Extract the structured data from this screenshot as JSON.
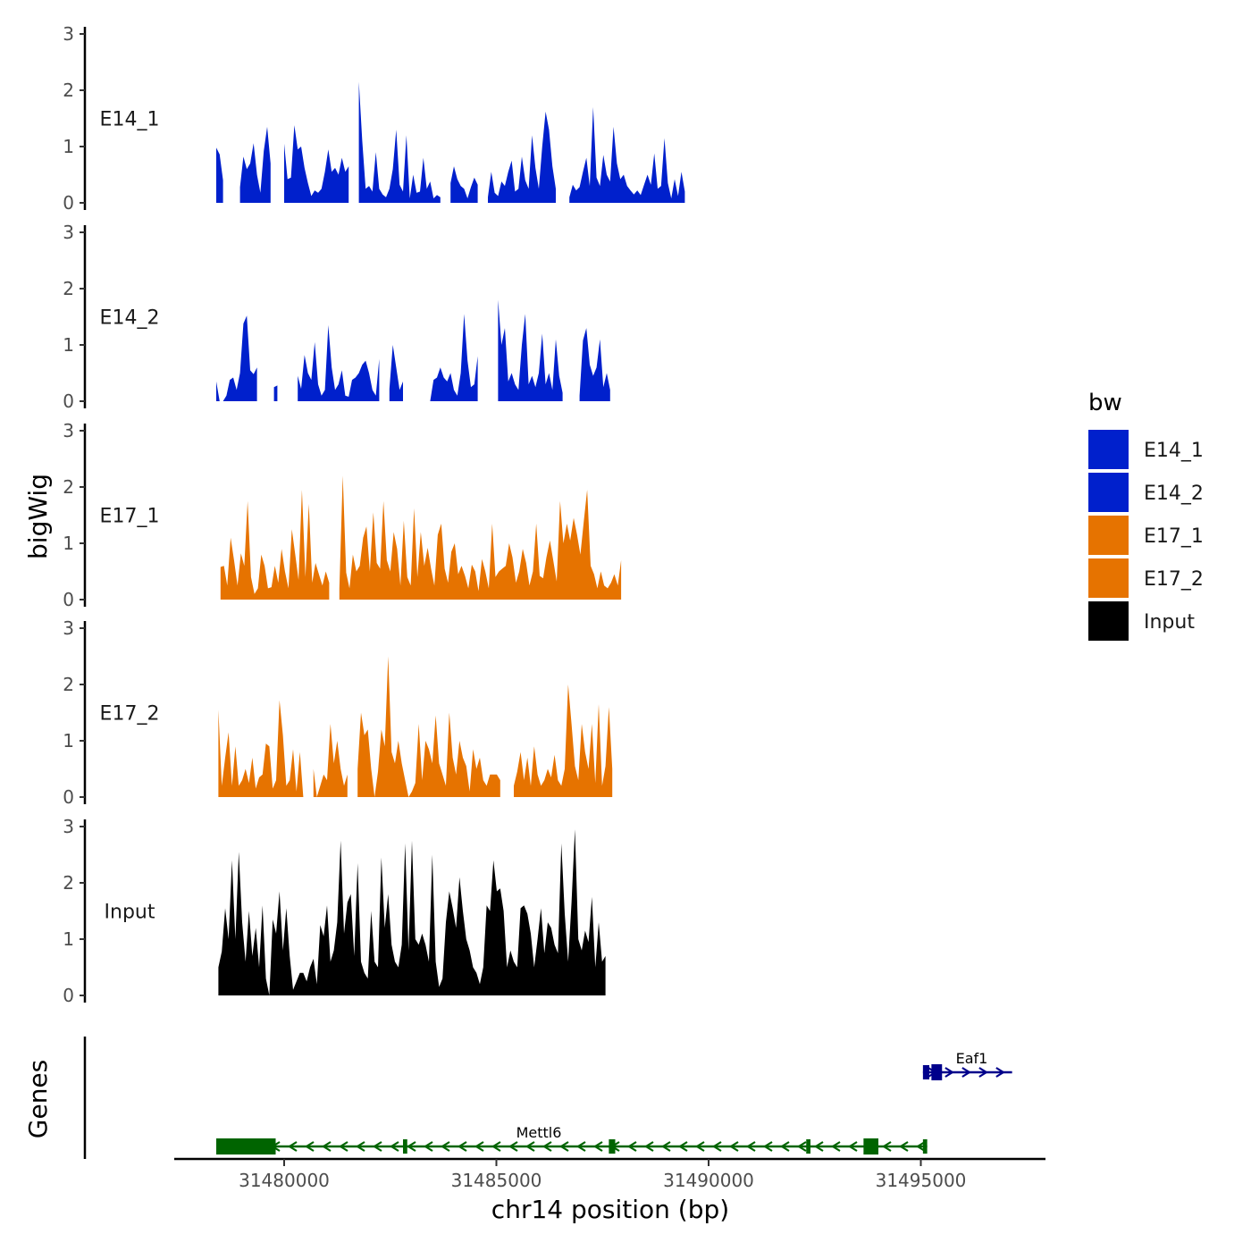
{
  "chart_data": {
    "type": "area",
    "ylabel": "bigWig",
    "xlabel": "chr14 position (bp)",
    "genes_label": "Genes",
    "y_ticks": [
      "0",
      "1",
      "2",
      "3"
    ],
    "ylim": [
      0,
      3
    ],
    "xlim": [
      31477000,
      31497500
    ],
    "x_ticks": [
      31480000,
      31485000,
      31490000,
      31495000
    ],
    "x_tick_labels": [
      "31480000",
      "31485000",
      "31490000",
      "31495000"
    ],
    "legend": {
      "title": "bw",
      "entries": [
        {
          "label": "E14_1",
          "color": "#0020CC"
        },
        {
          "label": "E14_2",
          "color": "#0020CC"
        },
        {
          "label": "E17_1",
          "color": "#E67300"
        },
        {
          "label": "E17_2",
          "color": "#E67300"
        },
        {
          "label": "Input",
          "color": "#000000"
        }
      ]
    },
    "series": [
      {
        "name": "E14_1",
        "color": "#0020CC",
        "x_start": 31478400,
        "step": 80,
        "values": [
          0.98,
          0.86,
          0.4,
          0,
          0,
          0,
          0,
          0.28,
          0.82,
          0.6,
          0.7,
          1.06,
          0.5,
          0.18,
          0.92,
          1.35,
          0.7,
          0,
          0,
          0.1,
          1.05,
          0.42,
          0.45,
          1.38,
          0.95,
          1.0,
          0.62,
          0.35,
          0.12,
          0.22,
          0.18,
          0.25,
          0.55,
          0.95,
          0.55,
          0.62,
          0.5,
          0.8,
          0.55,
          0.65,
          0,
          0.12,
          2.15,
          1.1,
          0.25,
          0.3,
          0.2,
          0.9,
          0.25,
          0.15,
          0.1,
          0.25,
          0.6,
          1.3,
          0.32,
          0.2,
          1.2,
          0.08,
          0.5,
          0.18,
          0.2,
          0.8,
          0.25,
          0.38,
          0.08,
          0.14,
          0.1,
          0.05,
          0.18,
          0.35,
          0.65,
          0.42,
          0.3,
          0.25,
          0.08,
          0.28,
          0.45,
          0.32,
          0.1,
          0.05,
          0.1,
          0.55,
          0.18,
          0.12,
          0.38,
          0.3,
          0.55,
          0.75,
          0.2,
          0.25,
          0.82,
          0.4,
          0.25,
          1.2,
          0.62,
          0.25,
          1.0,
          1.62,
          1.3,
          0.65,
          0.25,
          0.5,
          0.2,
          0,
          0.1,
          0.32,
          0.22,
          0.28,
          0.55,
          0.8,
          0.3,
          1.7,
          0.45,
          0.3,
          0.85,
          0.5,
          0.38,
          1.35,
          0.7,
          0.42,
          0.5,
          0.3,
          0.22,
          0.15,
          0.22,
          0.14,
          0.32,
          0.5,
          0.32,
          0.88,
          0.25,
          0.3,
          1.15,
          0.35,
          0.08,
          0.42,
          0.12,
          0.55,
          0.2
        ],
        "gaps": [
          [
            3,
            6
          ],
          [
            17,
            19
          ],
          [
            40,
            41
          ],
          [
            67,
            68
          ],
          [
            78,
            79
          ],
          [
            101,
            103
          ]
        ]
      },
      {
        "name": "E14_2",
        "color": "#0020CC",
        "x_start": 31478400,
        "step": 80,
        "values": [
          0.35,
          0,
          0,
          0.1,
          0.38,
          0.42,
          0.2,
          0.5,
          1.38,
          1.52,
          0.55,
          0.48,
          0.6,
          0.7,
          0,
          0,
          0,
          0.25,
          0.28,
          0,
          0,
          0,
          0,
          1.0,
          0.45,
          0.22,
          0.82,
          0.5,
          0.38,
          1.05,
          0.3,
          0.1,
          0.2,
          1.35,
          0.6,
          0.2,
          0.3,
          0.55,
          0.1,
          0.08,
          0.38,
          0.42,
          0.5,
          0.65,
          0.72,
          0.5,
          0.2,
          0.1,
          0.75,
          0.2,
          0,
          0.22,
          1.0,
          0.6,
          0.2,
          0.35,
          0.3,
          0,
          0.1,
          0.15,
          0.35,
          0,
          0,
          0,
          0.38,
          0.42,
          0.6,
          0.42,
          0.35,
          0.5,
          0.2,
          0.1,
          0.5,
          1.55,
          0.72,
          0.25,
          0.3,
          0.8,
          0.3,
          0.2,
          0,
          0,
          0,
          1.8,
          1.0,
          1.3,
          0.35,
          0.5,
          0.3,
          0.2,
          1.0,
          1.55,
          0.3,
          0.45,
          0.25,
          0.5,
          1.2,
          0.3,
          0.5,
          0.2,
          1.1,
          0.45,
          0.15,
          1.75,
          0.5,
          0.1,
          0,
          0.1,
          1.08,
          1.3,
          0.65,
          0.45,
          0.6,
          1.1,
          0.25,
          0.5,
          0.2
        ],
        "gaps": [
          [
            13,
            16
          ],
          [
            19,
            23
          ],
          [
            49,
            50
          ],
          [
            56,
            60
          ],
          [
            78,
            82
          ],
          [
            103,
            106
          ]
        ]
      },
      {
        "name": "E17_1",
        "color": "#E67300",
        "x_start": 31478500,
        "step": 80,
        "values": [
          0.58,
          0.6,
          0.25,
          1.1,
          0.7,
          0.25,
          0.82,
          0.6,
          1.75,
          0.4,
          0.1,
          0.2,
          0.8,
          0.6,
          0.2,
          0.22,
          0.6,
          0.3,
          0.9,
          0.5,
          0.2,
          1.25,
          0.8,
          0.35,
          1.95,
          0.4,
          1.7,
          0.3,
          0.65,
          0.45,
          0.25,
          0.5,
          0.3,
          0,
          0,
          0.2,
          2.2,
          0.48,
          0.2,
          0.8,
          0.5,
          0.6,
          1.1,
          1.3,
          0.5,
          1.55,
          0.65,
          0.55,
          1.75,
          0.7,
          0.5,
          1.2,
          0.9,
          0.25,
          1.4,
          0.4,
          0.25,
          1.62,
          0.4,
          1.2,
          0.6,
          0.92,
          0.55,
          0.25,
          1.15,
          1.35,
          0.55,
          0.3,
          0.85,
          1.0,
          0.45,
          0.6,
          0.42,
          0.2,
          0.62,
          0.5,
          0.15,
          0.72,
          0.5,
          0.2,
          1.35,
          0.4,
          0.5,
          0.55,
          0.6,
          1.0,
          0.75,
          0.3,
          0.5,
          0.9,
          0.65,
          0.25,
          0.5,
          1.35,
          0.42,
          0.38,
          0.75,
          1.05,
          0.7,
          0.32,
          1.75,
          1.0,
          1.35,
          1.05,
          1.45,
          1.15,
          0.8,
          1.4,
          1.95,
          0.6,
          0.45,
          0.2,
          0.5,
          0.25,
          0.2,
          0.3,
          0.45,
          0.25,
          0.7
        ],
        "gaps": [
          [
            33,
            34
          ]
        ]
      },
      {
        "name": "E17_2",
        "color": "#E67300",
        "x_start": 31478450,
        "step": 80,
        "values": [
          1.55,
          0.2,
          0.7,
          1.15,
          0.2,
          0.9,
          0.2,
          0.3,
          0.5,
          0.25,
          0.7,
          0.15,
          0.35,
          0.4,
          0.95,
          0.9,
          0.15,
          0.3,
          1.72,
          1.1,
          0.2,
          0.3,
          0.85,
          0.1,
          0.8,
          0,
          0.8,
          0.1,
          0.5,
          0,
          0.2,
          0.4,
          0.3,
          1.3,
          0.6,
          1.0,
          0.5,
          0.2,
          0.4,
          0,
          0,
          0.5,
          1.5,
          1.1,
          1.2,
          0.5,
          0,
          0.45,
          1.2,
          0.9,
          2.5,
          0.8,
          0.6,
          1.0,
          0.6,
          0.3,
          0,
          0.1,
          0.25,
          1.3,
          0.3,
          1.0,
          0.85,
          0.6,
          1.45,
          0.6,
          0.4,
          0.2,
          1.5,
          0.7,
          0.4,
          1.0,
          0.7,
          0.55,
          0.1,
          0.85,
          0.5,
          0.7,
          0.3,
          0.2,
          0.4,
          0.4,
          0.4,
          0.3,
          0,
          0,
          0,
          0.2,
          0.45,
          0.8,
          0.3,
          0.7,
          0.2,
          0.9,
          0.4,
          0.2,
          0.3,
          0.5,
          0.35,
          0.75,
          0.3,
          0.2,
          0.5,
          2.0,
          1.3,
          0.55,
          0.3,
          1.3,
          0.8,
          0.5,
          1.3,
          0.25,
          1.65,
          0.2,
          0.55,
          1.6,
          0.5
        ],
        "gaps": [
          [
            26,
            27
          ],
          [
            39,
            40
          ],
          [
            84,
            86
          ]
        ]
      },
      {
        "name": "Input",
        "color": "#000000",
        "x_start": 31478450,
        "step": 80,
        "values": [
          0.5,
          0.78,
          1.55,
          1.0,
          2.4,
          1.0,
          2.55,
          1.3,
          0.6,
          1.5,
          0.7,
          1.2,
          0.5,
          1.6,
          0.3,
          0,
          1.35,
          1.1,
          1.85,
          0.8,
          1.55,
          0.7,
          0.1,
          0.25,
          0.4,
          0.4,
          0.25,
          0.5,
          0.65,
          0.2,
          1.25,
          1.05,
          1.6,
          0.6,
          0.8,
          1.3,
          2.75,
          1.1,
          1.65,
          1.8,
          0.7,
          2.35,
          0.6,
          0.4,
          0.3,
          1.5,
          0.6,
          0.5,
          2.45,
          1.2,
          1.8,
          0.9,
          0.6,
          0.5,
          0.9,
          2.7,
          0.8,
          2.75,
          1.0,
          0.9,
          1.1,
          0.9,
          0.6,
          2.5,
          0.6,
          0.15,
          0.3,
          1.3,
          1.85,
          1.55,
          1.2,
          2.1,
          1.5,
          1.0,
          0.8,
          0.5,
          0.4,
          0.2,
          0.5,
          1.6,
          1.5,
          2.4,
          1.85,
          1.9,
          1.5,
          0.5,
          0.8,
          0.6,
          0.5,
          1.55,
          1.6,
          1.45,
          1.1,
          0.5,
          1.0,
          1.55,
          0.75,
          1.3,
          1.2,
          0.9,
          0.75,
          2.7,
          1.45,
          0.6,
          1.65,
          2.95,
          1.0,
          0.8,
          1.15,
          0.95,
          1.75,
          0.5,
          1.3,
          0.6,
          0.7
        ]
      },
      {
        "name": "Genes",
        "label": "Genes",
        "type": "genes"
      }
    ],
    "genes": [
      {
        "name": "Mettl6",
        "label": "Mettl6",
        "color": "#006400",
        "strand": "-",
        "start": 31478400,
        "end": 31495150,
        "exons": [
          [
            31478400,
            31479800
          ],
          [
            31482800,
            31482900
          ],
          [
            31487650,
            31487800
          ],
          [
            31492300,
            31492400
          ],
          [
            31493650,
            31494000
          ],
          [
            31495050,
            31495150
          ]
        ]
      },
      {
        "name": "Eaf1",
        "label": "Eaf1",
        "color": "#00008B",
        "strand": "+",
        "start": 31495050,
        "end": 31497150,
        "exons": [
          [
            31495050,
            31495200
          ],
          [
            31495250,
            31495500
          ]
        ]
      }
    ]
  }
}
